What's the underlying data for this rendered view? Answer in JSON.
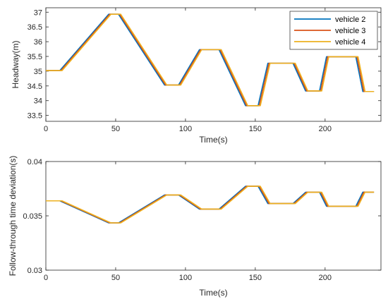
{
  "chart_data": [
    {
      "type": "line",
      "xlabel": "Time(s)",
      "ylabel": "Headway(m)",
      "xlim": [
        0,
        240
      ],
      "ylim": [
        33.3,
        37.15
      ],
      "xticks": [
        0,
        50,
        100,
        150,
        200
      ],
      "xtick_labels": [
        "0",
        "50",
        "100",
        "150",
        "200"
      ],
      "yticks": [
        33.5,
        34,
        34.5,
        35,
        35.5,
        36,
        36.5,
        37
      ],
      "ytick_labels": [
        "33.5",
        "34",
        "34.5",
        "35",
        "35.5",
        "36",
        "36.5",
        "37"
      ],
      "grid": false,
      "legend": "top-right",
      "series": [
        {
          "name": "vehicle 2",
          "color": "#0072BD",
          "x": [
            0,
            10,
            45,
            52,
            85,
            95,
            110,
            124,
            143,
            152,
            159,
            177,
            186,
            196,
            201,
            222,
            227,
            235
          ],
          "values": [
            35.02,
            35.02,
            36.93,
            36.93,
            34.53,
            34.53,
            35.73,
            35.73,
            33.83,
            33.83,
            35.27,
            35.27,
            34.33,
            34.33,
            35.49,
            35.49,
            34.31,
            34.31
          ]
        },
        {
          "name": "vehicle 3",
          "color": "#D95319",
          "x": [
            0,
            10.8,
            45.8,
            52.8,
            85.8,
            95.8,
            110.8,
            124.8,
            143.8,
            152.8,
            159.8,
            177.8,
            186.8,
            196.8,
            201.8,
            222.8,
            227.8,
            235
          ],
          "values": [
            35.02,
            35.02,
            36.93,
            36.93,
            34.53,
            34.53,
            35.73,
            35.73,
            33.83,
            33.83,
            35.27,
            35.27,
            34.33,
            34.33,
            35.49,
            35.49,
            34.31,
            34.31
          ]
        },
        {
          "name": "vehicle 4",
          "color": "#EDB120",
          "x": [
            0,
            11.6,
            46.6,
            53.6,
            86.6,
            96.6,
            111.6,
            125.6,
            144.6,
            153.6,
            160.6,
            178.6,
            187.6,
            197.6,
            202.6,
            223.6,
            228.6,
            235
          ],
          "values": [
            35.02,
            35.02,
            36.93,
            36.93,
            34.53,
            34.53,
            35.73,
            35.73,
            33.83,
            33.83,
            35.27,
            35.27,
            34.33,
            34.33,
            35.49,
            35.49,
            34.31,
            34.31
          ]
        }
      ]
    },
    {
      "type": "line",
      "xlabel": "Time(s)",
      "ylabel": "Follow-through time deviation(s)",
      "xlim": [
        0,
        240
      ],
      "ylim": [
        0.03,
        0.04
      ],
      "xticks": [
        0,
        50,
        100,
        150,
        200
      ],
      "xtick_labels": [
        "0",
        "50",
        "100",
        "150",
        "200"
      ],
      "yticks": [
        0.03,
        0.035,
        0.04
      ],
      "ytick_labels": [
        "0.03",
        "0.035",
        "0.04"
      ],
      "grid": false,
      "series": [
        {
          "name": "vehicle 2",
          "color": "#0072BD",
          "x": [
            0,
            10,
            45,
            52,
            85,
            95,
            110,
            124,
            143,
            152,
            159,
            177,
            186,
            196,
            201,
            222,
            227,
            235
          ],
          "values": [
            0.03638,
            0.03638,
            0.03435,
            0.03435,
            0.03692,
            0.03692,
            0.03562,
            0.03562,
            0.03772,
            0.03772,
            0.03613,
            0.03613,
            0.03717,
            0.03717,
            0.03588,
            0.03588,
            0.03718,
            0.03718
          ]
        },
        {
          "name": "vehicle 3",
          "color": "#D95319",
          "x": [
            0,
            10.8,
            45.8,
            52.8,
            85.8,
            95.8,
            110.8,
            124.8,
            143.8,
            152.8,
            159.8,
            177.8,
            186.8,
            196.8,
            201.8,
            222.8,
            227.8,
            235
          ],
          "values": [
            0.03638,
            0.03638,
            0.03435,
            0.03435,
            0.03692,
            0.03692,
            0.03562,
            0.03562,
            0.03772,
            0.03772,
            0.03613,
            0.03613,
            0.03717,
            0.03717,
            0.03588,
            0.03588,
            0.03718,
            0.03718
          ]
        },
        {
          "name": "vehicle 4",
          "color": "#EDB120",
          "x": [
            0,
            11.6,
            46.6,
            53.6,
            86.6,
            96.6,
            111.6,
            125.6,
            144.6,
            153.6,
            160.6,
            178.6,
            187.6,
            197.6,
            202.6,
            223.6,
            228.6,
            235
          ],
          "values": [
            0.03638,
            0.03638,
            0.03435,
            0.03435,
            0.03692,
            0.03692,
            0.03562,
            0.03562,
            0.03772,
            0.03772,
            0.03613,
            0.03613,
            0.03717,
            0.03717,
            0.03588,
            0.03588,
            0.03718,
            0.03718
          ]
        }
      ]
    }
  ]
}
